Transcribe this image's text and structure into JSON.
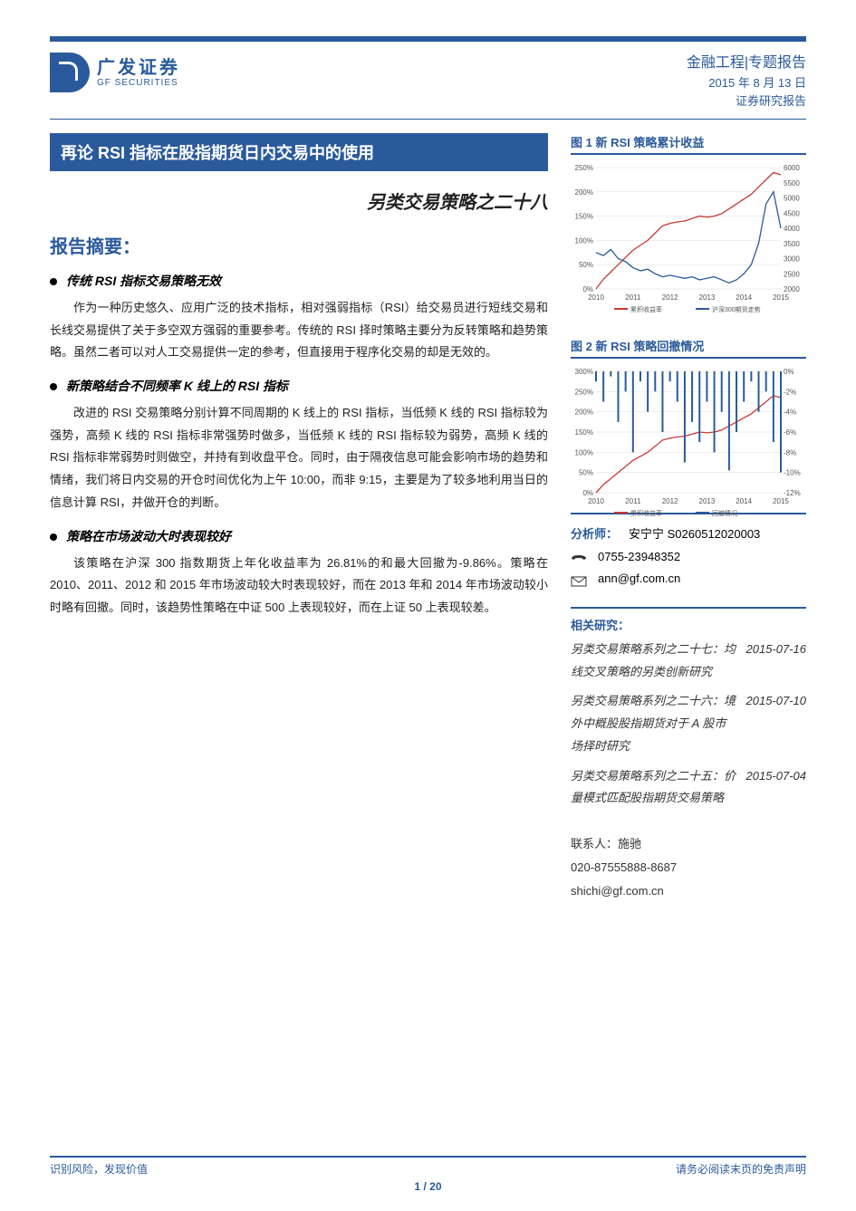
{
  "header": {
    "logo_cn": "广发证券",
    "logo_en": "GF SECURITIES",
    "category": "金融工程|专题报告",
    "date": "2015 年 8 月 13 日",
    "doc_type": "证券研究报告"
  },
  "title": "再论 RSI 指标在股指期货日内交易中的使用",
  "subtitle": "另类交易策略之二十八",
  "summary_header": "报告摘要：",
  "sections": [
    {
      "heading": "传统 RSI 指标交易策略无效",
      "body": "作为一种历史悠久、应用广泛的技术指标，相对强弱指标（RSI）给交易员进行短线交易和长线交易提供了关于多空双方强弱的重要参考。传统的 RSI 择时策略主要分为反转策略和趋势策略。虽然二者可以对人工交易提供一定的参考，但直接用于程序化交易的却是无效的。"
    },
    {
      "heading": "新策略结合不同频率 K 线上的 RSI 指标",
      "body": "改进的 RSI 交易策略分别计算不同周期的 K 线上的 RSI 指标，当低频 K 线的 RSI 指标较为强势，高频 K 线的 RSI 指标非常强势时做多，当低频 K 线的 RSI 指标较为弱势，高频 K 线的 RSI 指标非常弱势时则做空，并持有到收盘平仓。同时，由于隔夜信息可能会影响市场的趋势和情绪，我们将日内交易的开仓时间优化为上午 10:00，而非 9:15，主要是为了较多地利用当日的信息计算 RSI，并做开仓的判断。"
    },
    {
      "heading": "策略在市场波动大时表现较好",
      "body": "该策略在沪深 300 指数期货上年化收益率为 26.81%的和最大回撤为-9.86%。策略在 2010、2011、2012 和 2015 年市场波动较大时表现较好，而在 2013 年和 2014 年市场波动较小时略有回撤。同时，该趋势性策略在中证 500 上表现较好，而在上证 50 上表现较差。"
    }
  ],
  "figures": {
    "fig1": {
      "title": "图 1 新 RSI 策略累计收益",
      "type": "line",
      "x_labels": [
        "2010",
        "2011",
        "2012",
        "2013",
        "2014",
        "2015"
      ],
      "left_axis": {
        "min": 0,
        "max": 250,
        "step": 50,
        "format": "pct",
        "label": ""
      },
      "right_axis": {
        "min": 2000,
        "max": 6000,
        "step": 500,
        "label": ""
      },
      "series": [
        {
          "name": "累积收益率",
          "color": "#c73a33",
          "axis": "left",
          "data": [
            0,
            20,
            35,
            50,
            65,
            80,
            90,
            100,
            115,
            130,
            135,
            138,
            140,
            145,
            150,
            148,
            150,
            155,
            165,
            175,
            185,
            195,
            210,
            225,
            240,
            235
          ]
        },
        {
          "name": "沪深300期货走势",
          "color": "#2a5a9c",
          "axis": "right",
          "data": [
            3200,
            3100,
            3300,
            3000,
            2900,
            2700,
            2600,
            2650,
            2500,
            2400,
            2450,
            2400,
            2350,
            2400,
            2300,
            2350,
            2400,
            2300,
            2200,
            2300,
            2500,
            2800,
            3500,
            4800,
            5200,
            4000
          ]
        }
      ],
      "background": "#ffffff",
      "grid_color": "#dddddd"
    },
    "fig2": {
      "title": "图 2 新 RSI 策略回撤情况",
      "type": "line-area",
      "x_labels": [
        "2010",
        "2011",
        "2012",
        "2013",
        "2014",
        "2015"
      ],
      "left_axis": {
        "min": 0,
        "max": 300,
        "step": 50,
        "format": "pct"
      },
      "right_axis": {
        "min": -12,
        "max": 0,
        "step": 2,
        "format": "pct"
      },
      "series": [
        {
          "name": "累积收益率",
          "color": "#c73a33",
          "axis": "left",
          "type": "line",
          "data": [
            0,
            20,
            35,
            50,
            65,
            80,
            90,
            100,
            115,
            130,
            135,
            138,
            140,
            145,
            150,
            148,
            150,
            155,
            165,
            175,
            185,
            195,
            210,
            225,
            240,
            235
          ]
        },
        {
          "name": "回撤情况",
          "color": "#2a5a9c",
          "axis": "right",
          "type": "bars",
          "data": [
            -1,
            -3,
            -0.5,
            -5,
            -2,
            -8,
            -1,
            -4,
            -2,
            -6,
            -1,
            -3,
            -9,
            -5,
            -7,
            -3,
            -8,
            -4,
            -9.8,
            -6,
            -3,
            -1,
            -4,
            -2,
            -7,
            -10
          ]
        }
      ],
      "background": "#ffffff",
      "grid_color": "#dddddd"
    }
  },
  "analyst": {
    "label": "分析师：",
    "name": "安宁宁 S0260512020003",
    "tel": "0755-23948352",
    "email": "ann@gf.com.cn"
  },
  "related": {
    "header": "相关研究：",
    "items": [
      {
        "title": "另类交易策略系列之二十七：均线交叉策略的另类创新研究",
        "date": "2015-07-16"
      },
      {
        "title": "另类交易策略系列之二十六：境外中概股股指期货对于 A 股市场择时研究",
        "date": "2015-07-10"
      },
      {
        "title": "另类交易策略系列之二十五：价量模式匹配股指期货交易策略",
        "date": "2015-07-04"
      }
    ]
  },
  "contact": {
    "line1": "联系人：施驰",
    "line2": "020-87555888-8687",
    "line3": "shichi@gf.com.cn"
  },
  "footer": {
    "left": "识别风险，发现价值",
    "right": "请务必阅读末页的免责声明",
    "page": "1 / 20"
  },
  "colors": {
    "brand": "#2a5a9c",
    "red": "#c73a33",
    "text": "#222222"
  }
}
